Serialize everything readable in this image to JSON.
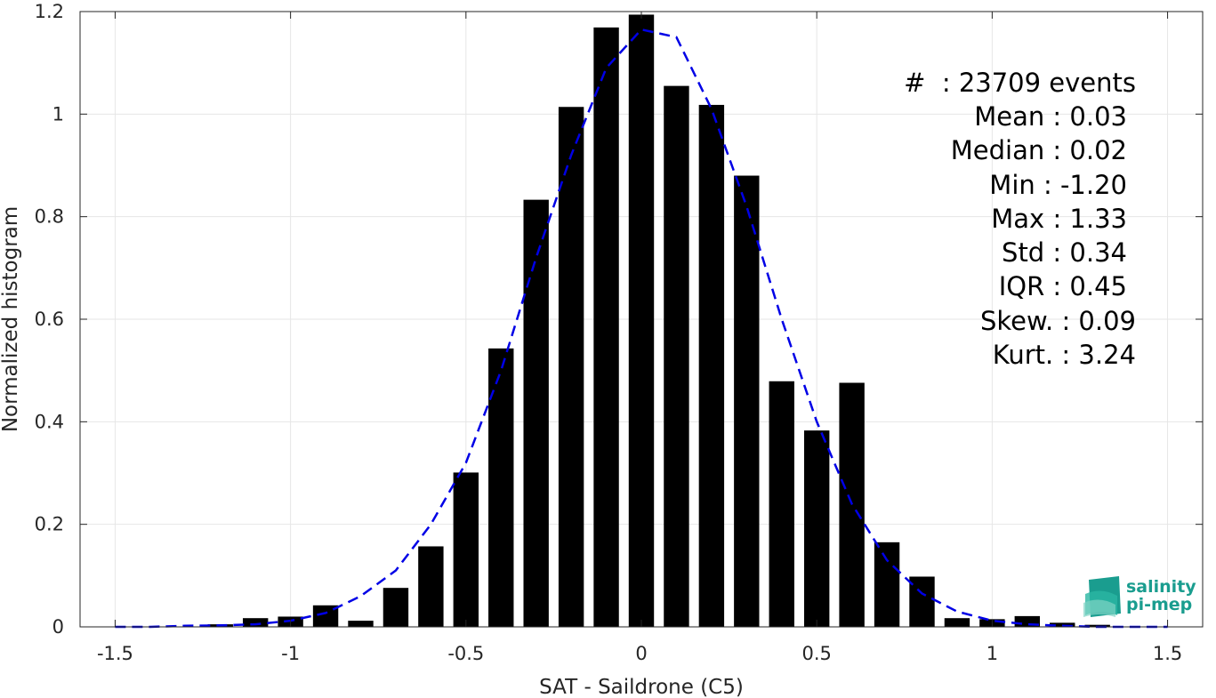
{
  "chart_data": {
    "type": "bar",
    "xlabel": "SAT - Saildrone (C5)",
    "ylabel": "Normalized histogram",
    "xlim": [
      -1.6,
      1.6
    ],
    "ylim": [
      0,
      1.2
    ],
    "xticks": [
      -1.5,
      -1,
      -0.5,
      0,
      0.5,
      1,
      1.5
    ],
    "xtick_labels": [
      "-1.5",
      "-1",
      "-0.5",
      "0",
      "0.5",
      "1",
      "1.5"
    ],
    "yticks": [
      0,
      0.2,
      0.4,
      0.6,
      0.8,
      1,
      1.2
    ],
    "ytick_labels": [
      "0",
      "0.2",
      "0.4",
      "0.6",
      "0.8",
      "1",
      "1.2"
    ],
    "grid": true,
    "bar_color": "#000000",
    "bin_width": 0.1,
    "bar_width_fraction": 0.72,
    "bars": {
      "x": [
        -1.2,
        -1.1,
        -1.0,
        -0.9,
        -0.8,
        -0.7,
        -0.6,
        -0.5,
        -0.4,
        -0.3,
        -0.2,
        -0.1,
        0.0,
        0.1,
        0.2,
        0.3,
        0.4,
        0.5,
        0.6,
        0.7,
        0.8,
        0.9,
        1.0,
        1.1,
        1.2,
        1.3
      ],
      "values": [
        0.005,
        0.017,
        0.02,
        0.042,
        0.012,
        0.076,
        0.157,
        0.301,
        0.543,
        0.833,
        1.014,
        1.169,
        1.194,
        1.055,
        1.018,
        0.88,
        0.479,
        0.383,
        0.476,
        0.165,
        0.098,
        0.017,
        0.015,
        0.021,
        0.008,
        0.004
      ]
    },
    "fit_curve": {
      "style": "dashed",
      "color": "#0000e6",
      "x": [
        -1.5,
        -1.4,
        -1.3,
        -1.2,
        -1.1,
        -1.0,
        -0.9,
        -0.8,
        -0.7,
        -0.6,
        -0.5,
        -0.4,
        -0.3,
        -0.2,
        -0.1,
        0.0,
        0.1,
        0.2,
        0.3,
        0.4,
        0.5,
        0.6,
        0.7,
        0.8,
        0.9,
        1.0,
        1.1,
        1.2,
        1.3,
        1.4,
        1.5
      ],
      "y": [
        0.0,
        0.0,
        0.002,
        0.003,
        0.005,
        0.012,
        0.027,
        0.06,
        0.11,
        0.2,
        0.32,
        0.5,
        0.72,
        0.92,
        1.09,
        1.165,
        1.15,
        1.01,
        0.82,
        0.6,
        0.4,
        0.24,
        0.13,
        0.065,
        0.03,
        0.012,
        0.005,
        0.002,
        0.0,
        0.0,
        0.0
      ]
    },
    "stats": {
      "events": "#  : 23709 events",
      "mean": "Mean : 0.03",
      "median": "Median : 0.02",
      "min": "Min : -1.20",
      "max": "Max : 1.33",
      "std": "Std : 0.34",
      "iqr": "IQR : 0.45",
      "skew": "Skew. : 0.09",
      "kurt": "Kurt. : 3.24"
    }
  },
  "logo": {
    "line1": "salinity",
    "line2": "pi-mep",
    "colors": [
      "#1a9d8f",
      "#2bb6a3",
      "#7fd3c4"
    ]
  }
}
